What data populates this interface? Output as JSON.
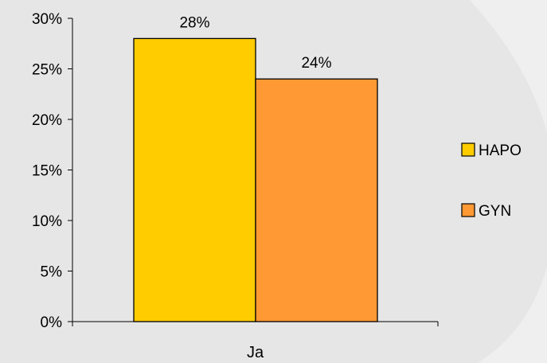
{
  "chart_data": {
    "type": "bar",
    "title": "",
    "xlabel": "",
    "ylabel": "",
    "categories": [
      "Ja"
    ],
    "series": [
      {
        "name": "HAPO",
        "values": [
          28
        ],
        "value_labels": [
          "28%"
        ],
        "color": "#ffcc00"
      },
      {
        "name": "GYN",
        "values": [
          24
        ],
        "value_labels": [
          "24%"
        ],
        "color": "#ff9933"
      }
    ],
    "ylim": [
      0,
      30
    ],
    "yticks": [
      0,
      5,
      10,
      15,
      20,
      25,
      30
    ],
    "ytick_labels": [
      "0%",
      "5%",
      "10%",
      "15%",
      "20%",
      "25%",
      "30%"
    ],
    "grid": false,
    "legend": {
      "position": "right"
    },
    "colors": {
      "background": "#e6e6e6",
      "highlight": "#efefef",
      "axis": "#000000",
      "bar_border": "#000000"
    }
  }
}
